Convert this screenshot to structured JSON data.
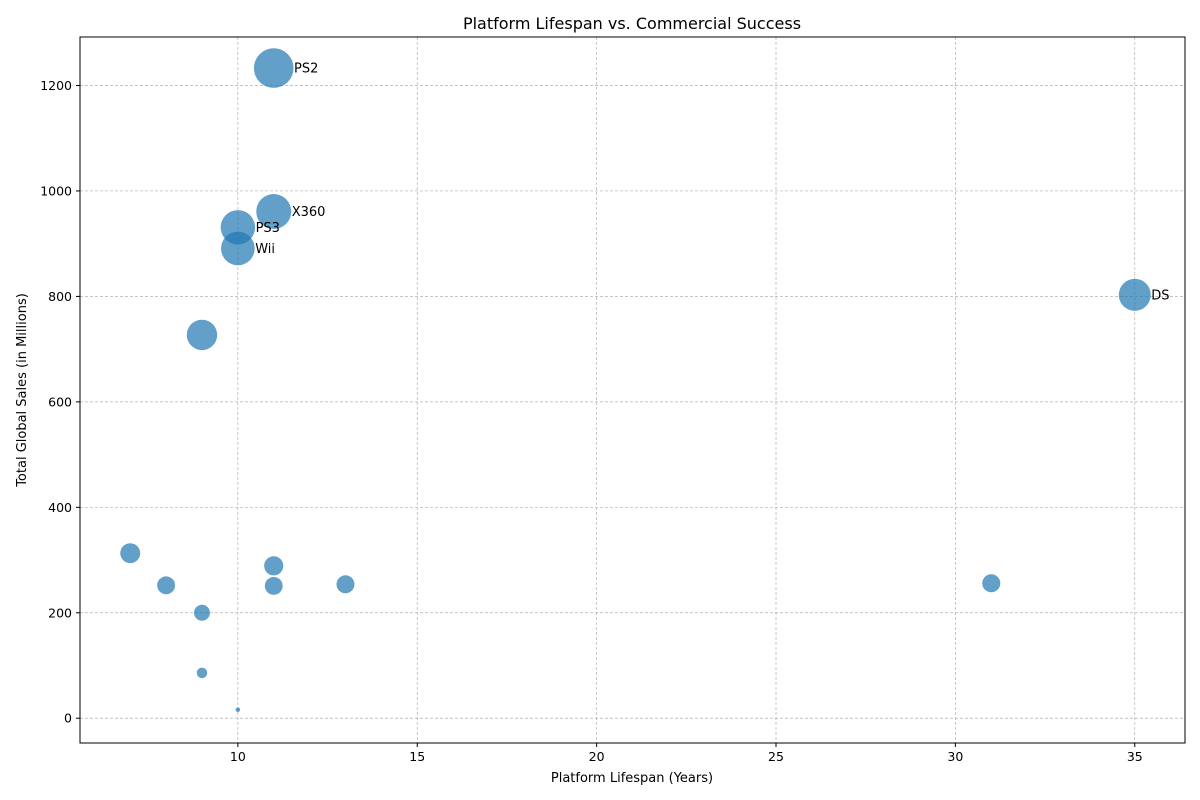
{
  "chart_data": {
    "type": "scatter",
    "title": "Platform Lifespan vs. Commercial Success",
    "xlabel": "Platform Lifespan (Years)",
    "ylabel": "Total Global Sales (in Millions)",
    "xlim": [
      5.6,
      36.4
    ],
    "ylim": [
      -47,
      1292
    ],
    "xticks": [
      10,
      15,
      20,
      25,
      30,
      35
    ],
    "yticks": [
      0,
      200,
      400,
      600,
      800,
      1000,
      1200
    ],
    "grid": true,
    "color": "#1f77b4",
    "points": [
      {
        "x": 11,
        "y": 1233,
        "s": 1233,
        "label": "PS2"
      },
      {
        "x": 11,
        "y": 961,
        "s": 961,
        "label": "X360"
      },
      {
        "x": 10,
        "y": 931,
        "s": 931,
        "label": "PS3"
      },
      {
        "x": 10,
        "y": 891,
        "s": 891,
        "label": "Wii"
      },
      {
        "x": 35,
        "y": 803,
        "s": 803,
        "label": "DS"
      },
      {
        "x": 9,
        "y": 727,
        "s": 727,
        "label": ""
      },
      {
        "x": 7,
        "y": 313,
        "s": 313,
        "label": ""
      },
      {
        "x": 11,
        "y": 289,
        "s": 289,
        "label": ""
      },
      {
        "x": 31,
        "y": 256,
        "s": 256,
        "label": ""
      },
      {
        "x": 13,
        "y": 254,
        "s": 254,
        "label": ""
      },
      {
        "x": 8,
        "y": 252,
        "s": 252,
        "label": ""
      },
      {
        "x": 11,
        "y": 251,
        "s": 251,
        "label": ""
      },
      {
        "x": 9,
        "y": 200,
        "s": 200,
        "label": ""
      },
      {
        "x": 9,
        "y": 86,
        "s": 86,
        "label": ""
      },
      {
        "x": 10,
        "y": 16,
        "s": 16,
        "label": ""
      }
    ]
  }
}
